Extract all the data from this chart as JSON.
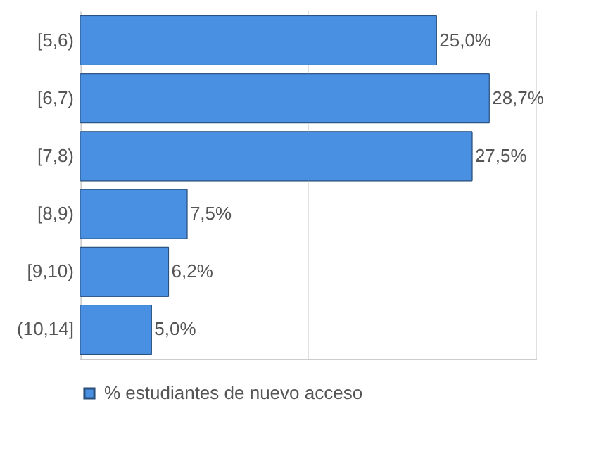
{
  "chart_data": {
    "type": "bar",
    "orientation": "horizontal",
    "categories": [
      "[5,6)",
      "[6,7)",
      "[7,8)",
      "[8,9)",
      "[9,10)",
      "(10,14]"
    ],
    "series": [
      {
        "name": "% estudiantes de nuevo acceso",
        "color": "#4a90e2",
        "values": [
          25.0,
          28.7,
          27.5,
          7.5,
          6.2,
          5.0
        ],
        "value_labels": [
          "25,0%",
          "28,7%",
          "27,5%",
          "7,5%",
          "6,2%",
          "5,0%"
        ]
      }
    ],
    "xlim": [
      0,
      32
    ],
    "xticks": [
      {
        "value": 0,
        "label": null
      },
      {
        "value": 16,
        "label": null
      },
      {
        "value": 32,
        "label": null
      }
    ],
    "tick_labels": "y",
    "grid": "x",
    "legend": "bottom"
  }
}
